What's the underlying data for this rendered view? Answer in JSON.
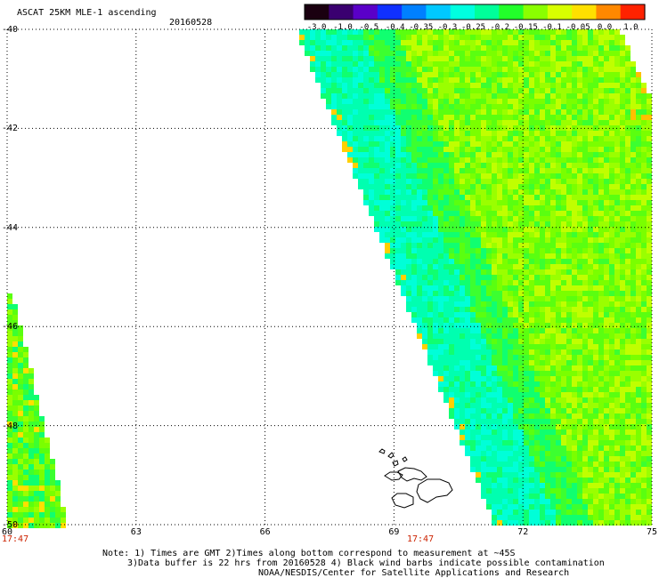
{
  "header": {
    "title": "ASCAT 25KM MLE-1 ascending",
    "date": "20160528"
  },
  "colorbar": {
    "labels": [
      "-3.0",
      "-1.0",
      "-0.5",
      "-0.4",
      "-0.35",
      "-0.3",
      "-0.25",
      "-0.2",
      "-0.15",
      "-0.1",
      "-0.05",
      "0.0",
      "1.0"
    ],
    "colors": [
      "#1a0010",
      "#3a0070",
      "#5a00c8",
      "#1030ff",
      "#0080ff",
      "#00c8ff",
      "#00ffe0",
      "#00ff9a",
      "#22ff2a",
      "#8aff00",
      "#d8ff00",
      "#ffe000",
      "#ff8800",
      "#ff2200"
    ]
  },
  "axes": {
    "lat_labels": [
      "-40",
      "-42",
      "-44",
      "-46",
      "-48",
      "-50"
    ],
    "lon_labels": [
      "60",
      "63",
      "66",
      "69",
      "72",
      "75"
    ],
    "time_labels": [
      "17:47",
      "17:47"
    ]
  },
  "notes": {
    "line1": "Note: 1) Times are GMT 2)Times along bottom correspond to measurement at ~45S",
    "line2": "3)Data buffer is 22 hrs from 20160528 4) Black wind barbs indicate possible contamination",
    "line3": "NOAA/NESDIS/Center for Satellite Applications and Research"
  },
  "map_data": {
    "lat_range": [
      -50,
      -40
    ],
    "lon_range": [
      60,
      75
    ],
    "swaths": [
      {
        "name_hidden": "",
        "kind": "main"
      },
      {
        "name_hidden": "",
        "kind": "left"
      }
    ]
  },
  "colors": {
    "grid": "#000000",
    "time_text": "#cc2200"
  }
}
